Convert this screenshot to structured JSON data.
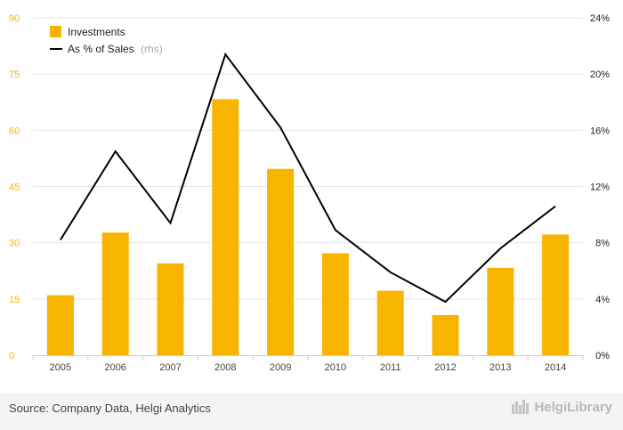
{
  "chart_data": {
    "type": "bar",
    "categories": [
      "2005",
      "2006",
      "2007",
      "2008",
      "2009",
      "2010",
      "2011",
      "2012",
      "2013",
      "2014"
    ],
    "series": [
      {
        "name": "Investments",
        "type": "bar",
        "axis": "left",
        "color": "#f7b500",
        "values": [
          16.0,
          32.7,
          24.5,
          68.3,
          49.7,
          27.2,
          17.2,
          10.7,
          23.3,
          32.2
        ]
      },
      {
        "name": "As % of Sales",
        "name_suffix": "(rhs)",
        "type": "line",
        "axis": "right",
        "color": "#000000",
        "values": [
          8.2,
          14.5,
          9.4,
          21.4,
          16.2,
          8.9,
          5.9,
          3.8,
          7.6,
          10.6
        ]
      }
    ],
    "y_left": {
      "ticks": [
        0,
        15,
        30,
        45,
        60,
        75,
        90
      ],
      "range": [
        0,
        90
      ],
      "color": "#f2b705"
    },
    "y_right": {
      "ticks": [
        "0%",
        "4%",
        "8%",
        "12%",
        "16%",
        "20%",
        "24%"
      ],
      "range": [
        0,
        24
      ]
    },
    "grid": true,
    "legend_position": "top-left",
    "title": "",
    "xlabel": "",
    "ylabel": ""
  },
  "footer": {
    "source": "Source: Company Data, Helgi Analytics",
    "brand": "HelgiLibrary"
  }
}
